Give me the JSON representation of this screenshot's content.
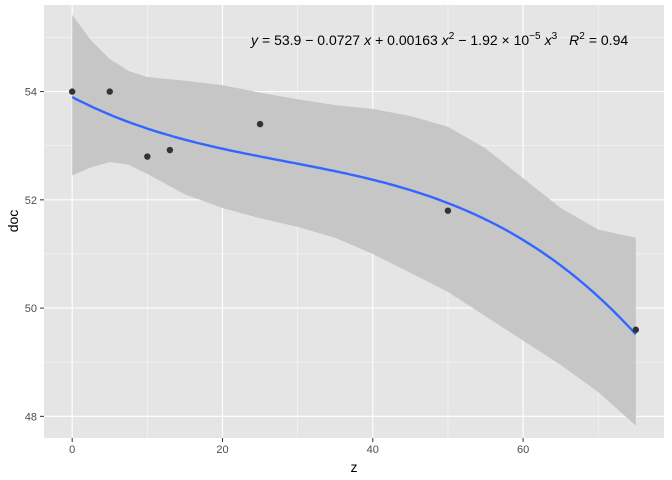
{
  "chart_data": {
    "type": "scatter",
    "xlabel": "z",
    "ylabel": "doc",
    "xlim": [
      -3.75,
      78.75
    ],
    "ylim": [
      47.6,
      55.6
    ],
    "x_ticks": [
      0,
      20,
      40,
      60
    ],
    "y_ticks": [
      48,
      50,
      52,
      54
    ],
    "x_tick_labels": [
      "0",
      "20",
      "40",
      "60"
    ],
    "y_tick_labels": [
      "48",
      "50",
      "52",
      "54"
    ],
    "grid": true,
    "points": [
      {
        "x": 0,
        "y": 54.0
      },
      {
        "x": 5,
        "y": 54.0
      },
      {
        "x": 10,
        "y": 52.8
      },
      {
        "x": 13,
        "y": 52.92
      },
      {
        "x": 25,
        "y": 53.4
      },
      {
        "x": 50,
        "y": 51.8
      },
      {
        "x": 75,
        "y": 49.6
      }
    ],
    "fit": {
      "type": "cubic polynomial",
      "coefficients": [
        53.9,
        -0.0727,
        0.00163,
        -1.92e-05
      ],
      "x_range": [
        0,
        75
      ],
      "confidence_band": [
        {
          "x": 0,
          "lower": 52.45,
          "upper": 55.42
        },
        {
          "x": 2.5,
          "lower": 52.6,
          "upper": 54.95
        },
        {
          "x": 5,
          "lower": 52.7,
          "upper": 54.6
        },
        {
          "x": 7.5,
          "lower": 52.65,
          "upper": 54.38
        },
        {
          "x": 10,
          "lower": 52.48,
          "upper": 54.27
        },
        {
          "x": 15,
          "lower": 52.1,
          "upper": 54.2
        },
        {
          "x": 20,
          "lower": 51.85,
          "upper": 54.12
        },
        {
          "x": 25,
          "lower": 51.66,
          "upper": 53.98
        },
        {
          "x": 30,
          "lower": 51.5,
          "upper": 53.86
        },
        {
          "x": 35,
          "lower": 51.3,
          "upper": 53.75
        },
        {
          "x": 40,
          "lower": 51.0,
          "upper": 53.68
        },
        {
          "x": 45,
          "lower": 50.65,
          "upper": 53.55
        },
        {
          "x": 50,
          "lower": 50.3,
          "upper": 53.35
        },
        {
          "x": 55,
          "lower": 49.85,
          "upper": 52.95
        },
        {
          "x": 60,
          "lower": 49.4,
          "upper": 52.4
        },
        {
          "x": 65,
          "lower": 48.95,
          "upper": 51.85
        },
        {
          "x": 70,
          "lower": 48.45,
          "upper": 51.45
        },
        {
          "x": 75,
          "lower": 47.83,
          "upper": 51.3
        }
      ]
    },
    "annotation": {
      "y_eq": "y",
      "eq_equals": "= 53.9 − 0.0727",
      "eq_x1": "x",
      "eq_plus": "+ 0.00163",
      "eq_x2": "x",
      "eq_x2_exp": "2",
      "eq_minus": "− 1.92 × 10",
      "eq_pow_exp": "−5",
      "eq_x3": "x",
      "eq_x3_exp": "3",
      "r_label": "R",
      "r_exp": "2",
      "r_value": "= 0.94"
    },
    "colors": {
      "panel": "#e5e5e5",
      "grid_major": "#ffffff",
      "band": "#c2c2c2",
      "line": "#3366ff",
      "point": "#333333"
    }
  }
}
